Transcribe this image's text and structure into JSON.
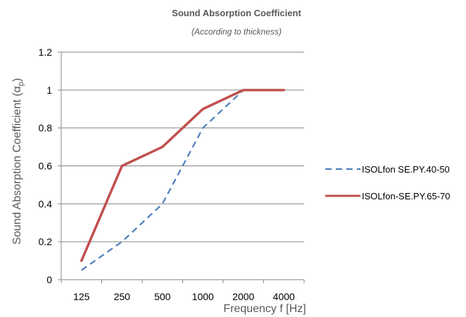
{
  "chart_data": {
    "type": "line",
    "title": "Sound Absorption Coefficient",
    "subtitle": "(According to thickness)",
    "xlabel": "Frequency f [Hz]",
    "ylabel": "Sound Absorption Coefficient (α",
    "ylabel_sub": "p",
    "ylabel_close": ")",
    "categories": [
      "125",
      "250",
      "500",
      "1000",
      "2000",
      "4000"
    ],
    "yticks": [
      "0",
      "0.2",
      "0.4",
      "0.6",
      "0.8",
      "1",
      "1.2"
    ],
    "ylim": [
      0,
      1.2
    ],
    "grid": true,
    "legend_position": "right",
    "series": [
      {
        "name": "ISOLfon SE.PY.40-50",
        "values": [
          0.05,
          0.2,
          0.4,
          0.8,
          1.0,
          1.0
        ],
        "color": "#4a7ebb",
        "style": "dashed"
      },
      {
        "name": "ISOLfon-SE.PY.65-70",
        "values": [
          0.1,
          0.6,
          0.7,
          0.9,
          1.0,
          1.0
        ],
        "color": "#c0504d",
        "style": "solid"
      }
    ]
  }
}
